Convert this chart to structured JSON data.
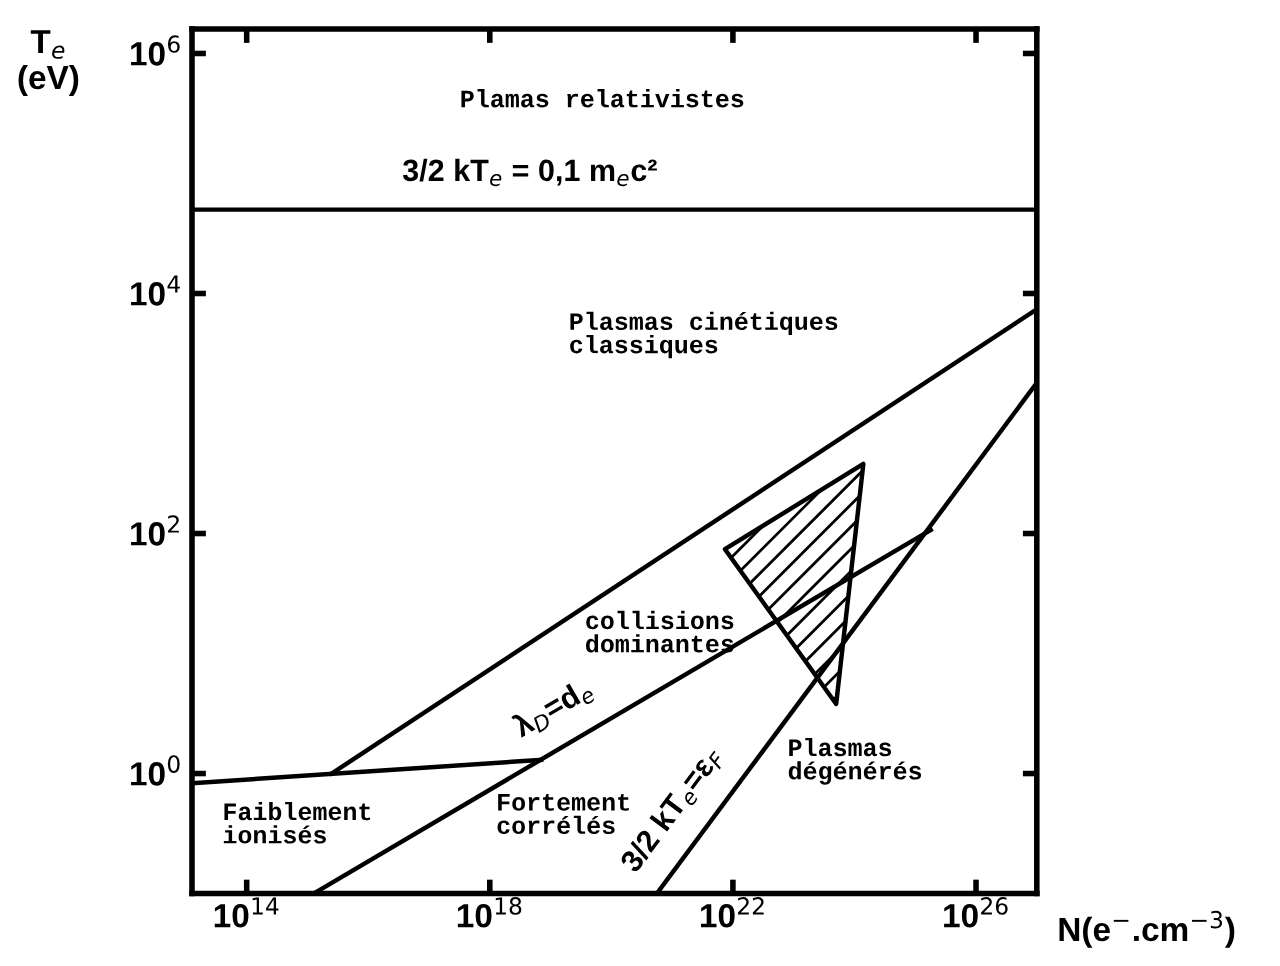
{
  "chart_data": {
    "type": "line",
    "xlabel": "N(e$^{−}$.cm$^{−3}$)",
    "ylabel": "T$_{e}$\n(eV)",
    "log": "xy",
    "grid": false,
    "legend": false,
    "xlim": [
      12600000000000.0,
      1e+27
    ],
    "ylim": [
      0.1,
      1600000.0
    ],
    "xticks": [
      {
        "value": 100000000000000.0,
        "label": "10$^{14}$"
      },
      {
        "value": 1e+18,
        "label": "10$^{18}$"
      },
      {
        "value": 1e+22,
        "label": "10$^{22}$"
      },
      {
        "value": 1e+26,
        "label": "10$^{26}$"
      }
    ],
    "yticks": [
      {
        "value": 1,
        "label": "10$^{0}$"
      },
      {
        "value": 100,
        "label": "10$^{2}$"
      },
      {
        "value": 10000,
        "label": "10$^{4}$"
      },
      {
        "value": 1000000,
        "label": "10$^{6}$"
      }
    ],
    "series": [
      {
        "name": "3/2 kT$_{e}$ = 0,1 m$_{e}$c²",
        "color": "#000000",
        "x": [
          12600000000000.0,
          1e+27
        ],
        "values": [
          50000,
          50000
        ]
      },
      {
        "color": "#000000",
        "x": [
          2500000000000000.0,
          1e+27
        ],
        "values": [
          1.0,
          7400
        ]
      },
      {
        "color": "#000000",
        "x": [
          12600000000000.0,
          7e+18
        ],
        "values": [
          0.83,
          1.3
        ]
      },
      {
        "name": "λ$_{D}$=d$_{e}$",
        "color": "#000000",
        "x": [
          1260000000000000.0,
          1.8e+25
        ],
        "values": [
          0.1,
          107
        ]
      },
      {
        "name": "3/2 kT$_{e}$=ε$_{F}$",
        "color": "#000000",
        "x": [
          5.6e+20,
          1e+27
        ],
        "values": [
          0.1,
          1800
        ]
      },
      {
        "type": "area",
        "color": "#000000",
        "x": [
          7.4e+21,
          1.4e+24,
          5e+23,
          7.4e+21
        ],
        "values": [
          74,
          380,
          3.8,
          74
        ]
      }
    ],
    "annotations": [
      "Plamas relativistes",
      "Plasmas cinétiques\nclassiques",
      "collisions\ndominantes",
      "Faiblement\nionisés",
      "Fortement\ncorrélés",
      "Plasmas\ndégénérés"
    ]
  }
}
